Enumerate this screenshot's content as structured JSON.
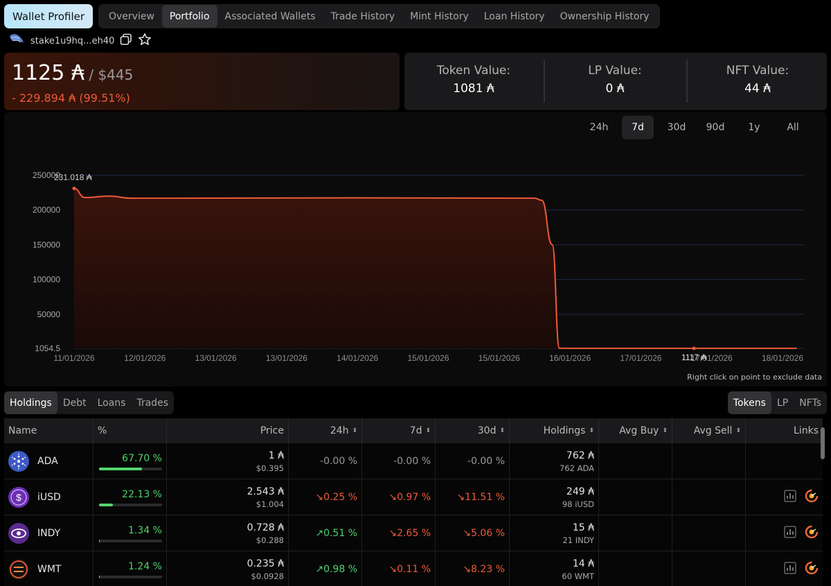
{
  "nav": {
    "brand": "Wallet Profiler",
    "tabs": [
      "Overview",
      "Portfolio",
      "Associated Wallets",
      "Trade History",
      "Mint History",
      "Loan History",
      "Ownership History"
    ],
    "active_tab": "Portfolio"
  },
  "wallet": {
    "address": "stake1u9hq...eh40"
  },
  "summary": {
    "total_ada": "1125 ₳",
    "total_usd": " / $445",
    "delta": "- 229.894 ₳ (99.51%)",
    "token_label": "Token Value:",
    "token_value": "1081 ₳",
    "lp_label": "LP Value:",
    "lp_value": "0 ₳",
    "nft_label": "NFT Value:",
    "nft_value": "44 ₳"
  },
  "ranges": [
    "24h",
    "7d",
    "30d",
    "90d",
    "1y",
    "All"
  ],
  "active_range": "7d",
  "chart_data": {
    "type": "area",
    "x_labels": [
      "11/01/2026",
      "12/01/2026",
      "13/01/2026",
      "13/01/2026",
      "14/01/2026",
      "15/01/2026",
      "15/01/2026",
      "16/01/2026",
      "17/01/2026",
      "17/01/2026",
      "18/01/2026"
    ],
    "y_ticks": [
      "250000",
      "200000",
      "150000",
      "100000",
      "50000",
      "1054.5"
    ],
    "ylim": [
      1054.5,
      250000
    ],
    "points": [
      {
        "x": 0,
        "y": 231018
      },
      {
        "x": 0.15,
        "y": 218000
      },
      {
        "x": 0.5,
        "y": 220000
      },
      {
        "x": 0.8,
        "y": 217000
      },
      {
        "x": 1.5,
        "y": 217000
      },
      {
        "x": 4,
        "y": 217500
      },
      {
        "x": 6.5,
        "y": 217000
      },
      {
        "x": 6.6,
        "y": 214000
      },
      {
        "x": 6.75,
        "y": 150000
      },
      {
        "x": 6.85,
        "y": 1300
      },
      {
        "x": 7.2,
        "y": 1117
      },
      {
        "x": 10.2,
        "y": 1117
      }
    ],
    "annotations": [
      {
        "label": "231.018 ₳",
        "x": 0,
        "y": 231018
      },
      {
        "label": "1117 ₳",
        "x": 8.75,
        "y": 1117
      }
    ],
    "color": "#ef5a3a",
    "grid": true
  },
  "chart_hint": "Right click on point to exclude data",
  "subtabs_left": [
    "Holdings",
    "Debt",
    "Loans",
    "Trades"
  ],
  "subtabs_left_active": "Holdings",
  "subtabs_right": [
    "Tokens",
    "LP",
    "NFTs"
  ],
  "subtabs_right_active": "Tokens",
  "table": {
    "headers": {
      "name": "Name",
      "pct": "%",
      "price": "Price",
      "h24": "24h",
      "d7": "7d",
      "d30": "30d",
      "holdings": "Holdings",
      "avg_buy": "Avg Buy",
      "avg_sell": "Avg Sell",
      "links": "Links"
    },
    "rows": [
      {
        "name": "ADA",
        "pct": "67.70 %",
        "pct_fill": 0.677,
        "price": "1 ₳",
        "price_usd": "$0.395",
        "h24": "-0.00 %",
        "d7": "-0.00 %",
        "d30": "-0.00 %",
        "holdings": "762 ₳",
        "holdings_sub": "762 ADA",
        "links": false
      },
      {
        "name": "iUSD",
        "pct": "22.13 %",
        "pct_fill": 0.2213,
        "price": "2.543 ₳",
        "price_usd": "$1.004",
        "h24": "↘0.25 %",
        "d7": "↘0.97 %",
        "d30": "↘11.51 %",
        "holdings": "249 ₳",
        "holdings_sub": "98 iUSD",
        "links": true
      },
      {
        "name": "INDY",
        "pct": "1.34 %",
        "pct_fill": 0.0134,
        "price": "0.728 ₳",
        "price_usd": "$0.288",
        "h24": "↗0.51 %",
        "d7": "↘2.65 %",
        "d30": "↘5.06 %",
        "holdings": "15 ₳",
        "holdings_sub": "21 INDY",
        "links": true
      },
      {
        "name": "WMT",
        "pct": "1.24 %",
        "pct_fill": 0.0124,
        "price": "0.235 ₳",
        "price_usd": "$0.0928",
        "h24": "↗0.98 %",
        "d7": "↘0.11 %",
        "d30": "↘8.23 %",
        "holdings": "14 ₳",
        "holdings_sub": "60 WMT",
        "links": true
      }
    ]
  }
}
